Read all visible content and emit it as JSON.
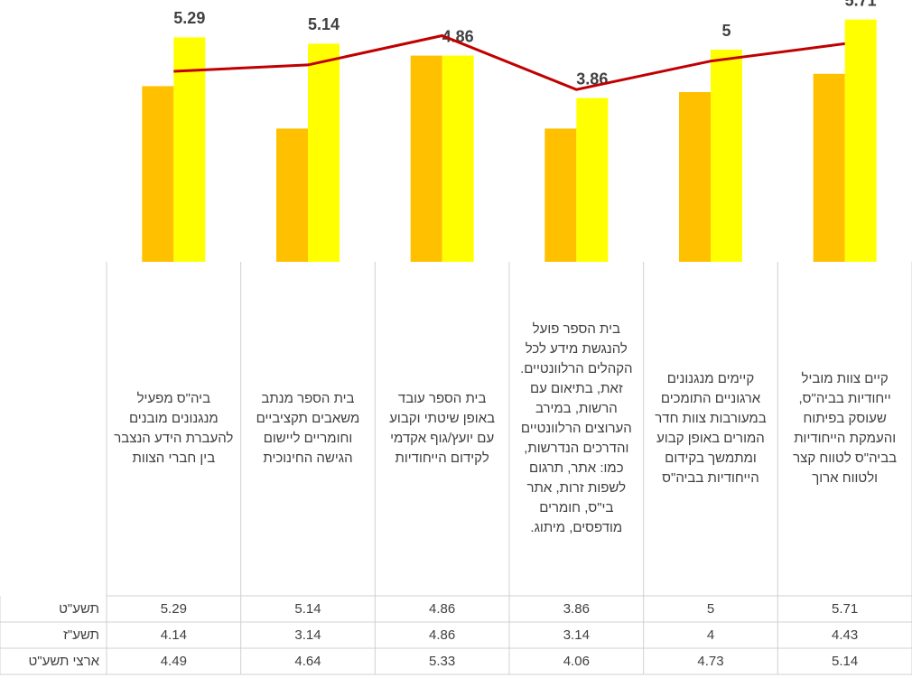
{
  "chart_data": {
    "type": "bar",
    "categories": [
      "ביה\"ס מפעיל מנגנונים מובנים להעברת הידע הנצבר בין חברי הצוות",
      "בית הספר מנתב משאבים תקציביים וחומריים ליישום הגישה החינוכית",
      "בית הספר עובד באופן שיטתי וקבוע עם יועץ/גוף אקדמי לקידום הייחודיות",
      "בית הספר פועל להנגשת מידע לכל הקהלים הרלוונטיים. זאת, בתיאום עם הרשות, במירב הערוצים הרלוונטיים והדרכים הנדרשות, כמו: אתר, תרגום לשפות זרות, אתר בי\"ס, חומרים מודפסים, מיתוג.",
      "קיימים מנגנונים ארגוניים התומכים במעורבות צוות חדר המורים באופן קבוע ומתמשך בקידום הייחודיות בביה\"ס",
      "קיים צוות מוביל ייחודיות בביה\"ס, שעוסק בפיתוח והעמקת הייחודיות בביה\"ס לטווח קצר ולטווח ארוך"
    ],
    "series": [
      {
        "name": "תשע\"ט",
        "color": "#ffff00",
        "kind": "bar",
        "values": [
          5.29,
          5.14,
          4.86,
          3.86,
          5,
          5.71
        ]
      },
      {
        "name": "תשע\"ז",
        "color": "#ffc000",
        "kind": "bar",
        "values": [
          4.14,
          3.14,
          4.86,
          3.14,
          4,
          4.43
        ]
      },
      {
        "name": "ארצי תשע\"ט",
        "color": "#c00000",
        "kind": "line",
        "values": [
          4.49,
          4.64,
          5.33,
          4.06,
          4.73,
          5.14
        ]
      }
    ],
    "ylim": [
      0,
      6
    ],
    "data_labels_series": 0,
    "data_table": true
  }
}
